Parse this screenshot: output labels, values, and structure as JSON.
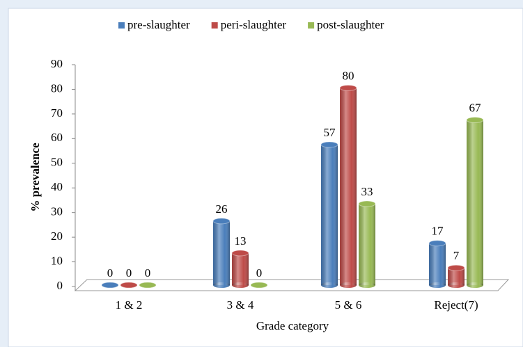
{
  "chart_data": {
    "type": "bar",
    "categories": [
      "1 & 2",
      "3 & 4",
      "5 & 6",
      "Reject(7)"
    ],
    "series": [
      {
        "name": "pre-slaughter",
        "color": "#4a7ebb",
        "values": [
          0,
          26,
          57,
          17
        ]
      },
      {
        "name": "peri-slaughter",
        "color": "#be4b48",
        "values": [
          0,
          13,
          80,
          7
        ]
      },
      {
        "name": "post-slaughter",
        "color": "#98b954",
        "values": [
          0,
          0,
          33,
          67
        ]
      }
    ],
    "xlabel": "Grade category",
    "ylabel": "% prevalence",
    "ylim": [
      0,
      90
    ],
    "yticks": [
      0,
      10,
      20,
      30,
      40,
      50,
      60,
      70,
      80,
      90
    ],
    "legend": "top"
  }
}
